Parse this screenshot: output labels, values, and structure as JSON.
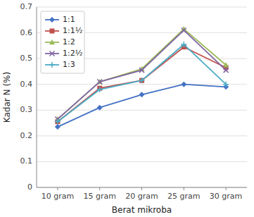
{
  "chart_data": {
    "type": "line",
    "xlabel": "Berat mikroba",
    "ylabel": "Kadar N (%)",
    "categories": [
      "10 gram",
      "15 gram",
      "20 gram",
      "25 gram",
      "30 gram"
    ],
    "series": [
      {
        "name": "1:1",
        "color": "#4472C4",
        "marker": "diamond",
        "values": [
          0.235,
          0.31,
          0.36,
          0.4,
          0.39
        ]
      },
      {
        "name": "1:1½",
        "color": "#C0504D",
        "marker": "square",
        "values": [
          0.255,
          0.385,
          0.415,
          0.545,
          0.465
        ]
      },
      {
        "name": "1:2",
        "color": "#9BBB59",
        "marker": "triangle",
        "values": [
          0.265,
          0.41,
          0.46,
          0.615,
          0.475
        ]
      },
      {
        "name": "1:2½",
        "color": "#8064A2",
        "marker": "x",
        "values": [
          0.265,
          0.41,
          0.455,
          0.61,
          0.455
        ]
      },
      {
        "name": "1:3",
        "color": "#4BACC6",
        "marker": "plus",
        "values": [
          0.255,
          0.38,
          0.415,
          0.555,
          0.4
        ]
      }
    ],
    "ylim": [
      0,
      0.7
    ],
    "yticks": [
      0,
      0.1,
      0.2,
      0.3,
      0.4,
      0.5,
      0.6,
      0.7
    ],
    "grid": true,
    "legend": "upper left"
  }
}
